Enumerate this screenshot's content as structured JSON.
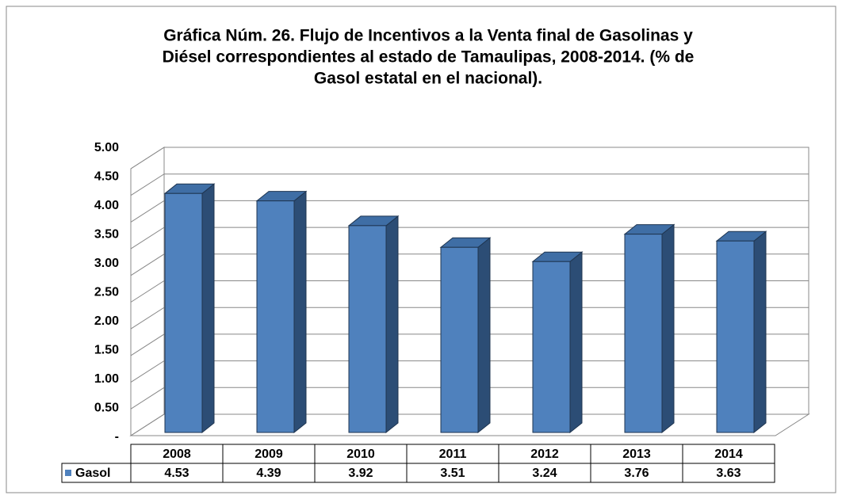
{
  "chart_data": {
    "type": "bar3d",
    "title_lines": [
      "Gráfica Núm. 26. Flujo de Incentivos a la Venta final de Gasolinas y",
      "Diésel correspondientes al estado de Tamaulipas, 2008-2014. (% de",
      "Gasol estatal en el nacional)."
    ],
    "categories": [
      "2008",
      "2009",
      "2010",
      "2011",
      "2012",
      "2013",
      "2014"
    ],
    "series": [
      {
        "name": "Gasol",
        "color": "#4f81bd",
        "values": [
          4.53,
          4.39,
          3.92,
          3.51,
          3.24,
          3.76,
          3.63
        ]
      }
    ],
    "ylim": [
      0,
      5
    ],
    "yticks": [
      {
        "value": 0,
        "label": "-"
      },
      {
        "value": 0.5,
        "label": "0.50"
      },
      {
        "value": 1,
        "label": "1.00"
      },
      {
        "value": 1.5,
        "label": "1.50"
      },
      {
        "value": 2,
        "label": "2.00"
      },
      {
        "value": 2.5,
        "label": "2.50"
      },
      {
        "value": 3,
        "label": "3.00"
      },
      {
        "value": 3.5,
        "label": "3.50"
      },
      {
        "value": 4,
        "label": "4.00"
      },
      {
        "value": 4.5,
        "label": "4.50"
      },
      {
        "value": 5,
        "label": "5.00"
      }
    ],
    "grid": true,
    "legend": "table"
  }
}
